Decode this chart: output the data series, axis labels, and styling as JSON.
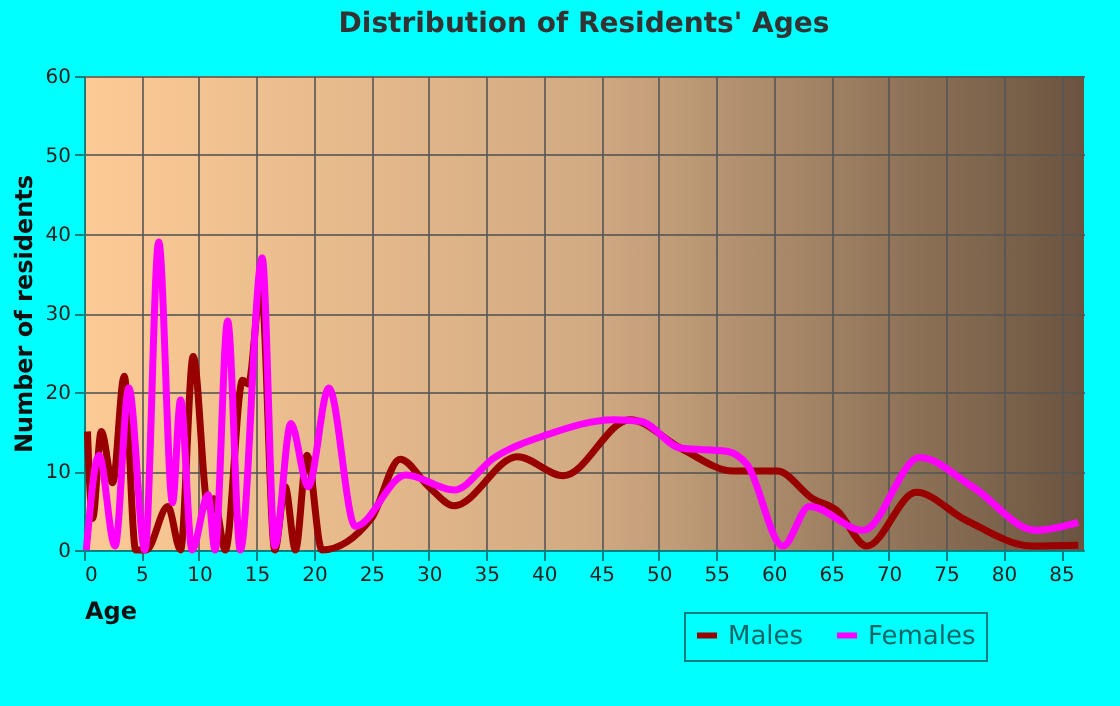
{
  "chart_data": {
    "type": "line",
    "title": "Distribution of Residents' Ages",
    "xlabel": "Age",
    "ylabel": "Number of residents",
    "xlim": [
      0,
      87
    ],
    "xticks": [
      0,
      5,
      10,
      15,
      20,
      25,
      30,
      35,
      40,
      45,
      50,
      55,
      60,
      65,
      70,
      75,
      80,
      85
    ],
    "ylim": [
      0,
      60
    ],
    "yticks": [
      0,
      10,
      20,
      30,
      40,
      50,
      60
    ],
    "grid": true,
    "legend": "bottom",
    "series": [
      {
        "name": "Males",
        "color": "#990000",
        "x": [
          0.3,
          0.75,
          1.5,
          2.5,
          3.5,
          4.5,
          5.4,
          7.3,
          8.4,
          9.5,
          10.8,
          11.3,
          12.3,
          13.8,
          14.3,
          15.4,
          16.6,
          17.5,
          18.4,
          19.4,
          20.7,
          25,
          27.5,
          30,
          32.2,
          37.7,
          41.7,
          47.5,
          51.9,
          56.5,
          60.3,
          63.4,
          65.5,
          68.1,
          72.4,
          76.7,
          82.5,
          86.5
        ],
        "values": [
          15,
          4,
          15,
          8.5,
          22,
          0,
          0,
          5.5,
          0,
          24.5,
          5.5,
          6.5,
          0,
          21.5,
          21,
          33.5,
          0,
          8,
          0,
          12,
          0,
          4,
          11.5,
          8,
          5.6,
          11.8,
          9.4,
          16.5,
          12.9,
          10,
          10,
          6.5,
          5,
          0.5,
          7.3,
          3.8,
          0.5,
          0.6
        ]
      },
      {
        "name": "Females",
        "color": "#ff00ff",
        "x": [
          0.2,
          1.3,
          2.7,
          3.9,
          5.3,
          6.5,
          7.7,
          8.4,
          9.4,
          10.8,
          11.4,
          12.5,
          13.6,
          15.5,
          16.6,
          18,
          19.5,
          21.3,
          23.6,
          28,
          32.2,
          35.7,
          40.3,
          46.1,
          48.4,
          51.9,
          55.9,
          57.7,
          60.8,
          63.1,
          67.8,
          72.7,
          77.3,
          82.8,
          86.5
        ],
        "values": [
          0,
          12,
          0.5,
          20.5,
          0,
          39,
          6,
          19,
          0,
          7,
          0,
          29,
          0,
          37,
          0.5,
          16,
          8,
          20.5,
          3,
          9.5,
          7.6,
          11.7,
          14.6,
          16.5,
          16.3,
          12.9,
          12.5,
          10.8,
          0.5,
          5.5,
          2.5,
          11.7,
          8,
          2.5,
          3.5
        ]
      }
    ]
  }
}
